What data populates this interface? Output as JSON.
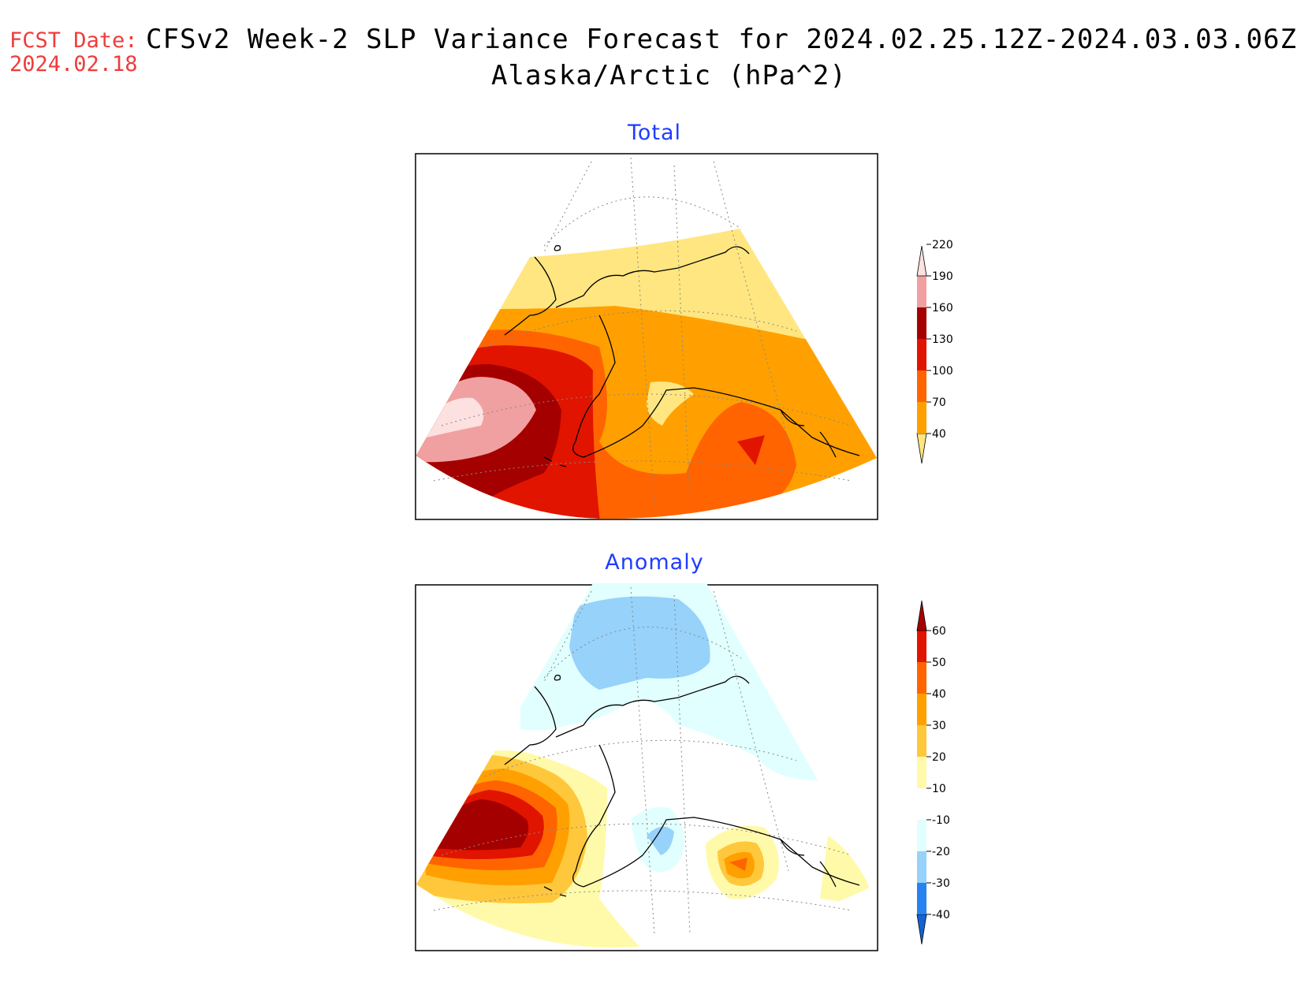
{
  "header": {
    "fcst_label": "FCST Date:",
    "fcst_date": "2024.02.18",
    "title": "CFSv2 Week-2 SLP Variance Forecast for 2024.02.25.12Z-2024.03.03.06Z",
    "subtitle": "Alaska/Arctic (hPa^2)"
  },
  "panels": {
    "total": {
      "title": "Total",
      "colorbar": {
        "ticks": [
          "40",
          "70",
          "100",
          "130",
          "160",
          "190",
          "220"
        ],
        "colors": [
          "#ffe680",
          "#ffa000",
          "#ff6400",
          "#e11400",
          "#a50000",
          "#f0a0a0",
          "#fde0e0"
        ]
      }
    },
    "anomaly": {
      "title": "Anomaly",
      "colorbar": {
        "ticks": [
          "-40",
          "-30",
          "-20",
          "-10",
          "10",
          "20",
          "30",
          "40",
          "50",
          "60"
        ],
        "colors": [
          "#1464d2",
          "#2882f0",
          "#96d2fa",
          "#e1ffff",
          "#ffffff",
          "#fffaaa",
          "#ffc83c",
          "#ffa000",
          "#ff6400",
          "#e11400",
          "#a50000"
        ]
      }
    }
  }
}
